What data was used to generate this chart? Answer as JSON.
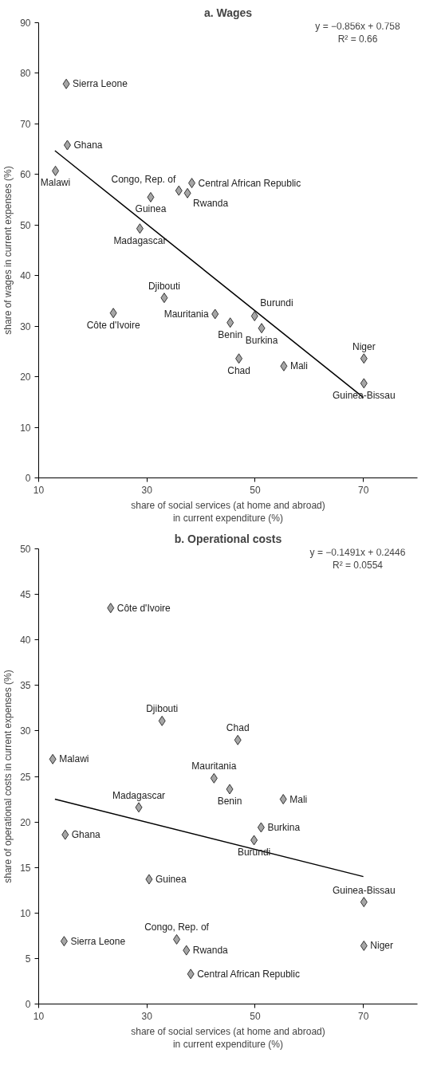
{
  "chart_data": [
    {
      "type": "scatter",
      "title": "a. Wages",
      "xlabel": "share of social services (at home and abroad)\nin current expenditure (%)",
      "ylabel": "share of wages in current expenses (%)",
      "xlim": [
        10,
        80
      ],
      "ylim": [
        0,
        90
      ],
      "xticks": [
        10,
        30,
        50,
        70
      ],
      "yticks": [
        0,
        10,
        20,
        30,
        40,
        50,
        60,
        70,
        80,
        90
      ],
      "grid": false,
      "series": [
        {
          "marker": "diamond",
          "color": "#a6a6a6",
          "x": [
            15.1,
            15.3,
            13.1,
            28.7,
            30.7,
            35.9,
            37.5,
            38.3,
            33.2,
            23.8,
            42.6,
            45.4,
            47.0,
            49.9,
            51.2,
            55.3,
            70.1,
            70.1
          ],
          "values": [
            77.9,
            65.8,
            60.7,
            49.3,
            55.5,
            56.8,
            56.3,
            58.3,
            35.6,
            32.6,
            32.4,
            30.7,
            23.6,
            32.0,
            29.6,
            22.1,
            23.6,
            18.7
          ]
        },
        {
          "type": "line",
          "color": "#000000",
          "x": [
            13,
            70
          ],
          "values": [
            64.7,
            15.9
          ]
        }
      ],
      "annotations": [
        "y = −0.856x + 0.758",
        "R² = 0.66",
        {
          "text": "Sierra Leone",
          "x": 15.1,
          "y": 77.9
        },
        {
          "text": "Ghana",
          "x": 15.3,
          "y": 65.8
        },
        {
          "text": "Malawi",
          "x": 13.1,
          "y": 60.7
        },
        {
          "text": "Madagascar",
          "x": 28.7,
          "y": 49.3
        },
        {
          "text": "Guinea",
          "x": 30.7,
          "y": 55.5
        },
        {
          "text": "Congo, Rep. of",
          "x": 35.9,
          "y": 56.8
        },
        {
          "text": "Rwanda",
          "x": 37.5,
          "y": 56.3
        },
        {
          "text": "Central African Republic",
          "x": 38.3,
          "y": 58.3
        },
        {
          "text": "Djibouti",
          "x": 33.2,
          "y": 35.6
        },
        {
          "text": "Côte d'Ivoire",
          "x": 23.8,
          "y": 32.6
        },
        {
          "text": "Mauritania",
          "x": 42.6,
          "y": 32.4
        },
        {
          "text": "Benin",
          "x": 45.4,
          "y": 30.7
        },
        {
          "text": "Chad",
          "x": 47.0,
          "y": 23.6
        },
        {
          "text": "Burundi",
          "x": 49.9,
          "y": 32.0
        },
        {
          "text": "Burkina",
          "x": 51.2,
          "y": 29.6
        },
        {
          "text": "Mali",
          "x": 55.3,
          "y": 22.1
        },
        {
          "text": "Niger",
          "x": 70.1,
          "y": 23.6
        },
        {
          "text": "Guinea-Bissau",
          "x": 70.1,
          "y": 18.7
        }
      ]
    },
    {
      "type": "scatter",
      "title": "b. Operational costs",
      "xlabel": "share of social services (at home and abroad)\nin current expenditure (%)",
      "ylabel": "share of operational costs in current expenses (%)",
      "xlim": [
        10,
        80
      ],
      "ylim": [
        0,
        50
      ],
      "xticks": [
        10,
        30,
        50,
        70
      ],
      "yticks": [
        0,
        5,
        10,
        15,
        20,
        25,
        30,
        35,
        40,
        45,
        50
      ],
      "grid": false,
      "series": [
        {
          "marker": "diamond",
          "color": "#a6a6a6",
          "x": [
            14.7,
            14.9,
            12.6,
            28.5,
            30.4,
            35.5,
            37.3,
            38.1,
            32.8,
            23.3,
            42.4,
            45.3,
            46.8,
            49.8,
            51.1,
            55.2,
            70.1,
            70.1
          ],
          "values": [
            6.9,
            18.6,
            26.9,
            21.6,
            13.7,
            7.1,
            5.9,
            3.3,
            31.1,
            43.5,
            24.8,
            23.6,
            29.0,
            18.0,
            19.4,
            22.5,
            6.4,
            11.2
          ]
        },
        {
          "type": "line",
          "color": "#000000",
          "x": [
            13,
            70
          ],
          "values": [
            22.5,
            14.0
          ]
        }
      ],
      "annotations": [
        "y = −0.1491x + 0.2446",
        "R² = 0.0554",
        {
          "text": "Sierra Leone",
          "x": 14.7,
          "y": 6.9
        },
        {
          "text": "Ghana",
          "x": 14.9,
          "y": 18.6
        },
        {
          "text": "Malawi",
          "x": 12.6,
          "y": 26.9
        },
        {
          "text": "Madagascar",
          "x": 28.5,
          "y": 21.6
        },
        {
          "text": "Guinea",
          "x": 30.4,
          "y": 13.7
        },
        {
          "text": "Congo, Rep. of",
          "x": 35.5,
          "y": 7.1
        },
        {
          "text": "Rwanda",
          "x": 37.3,
          "y": 5.9
        },
        {
          "text": "Central African Republic",
          "x": 38.1,
          "y": 3.3
        },
        {
          "text": "Djibouti",
          "x": 32.8,
          "y": 31.1
        },
        {
          "text": "Côte d'Ivoire",
          "x": 23.3,
          "y": 43.5
        },
        {
          "text": "Mauritania",
          "x": 42.4,
          "y": 24.8
        },
        {
          "text": "Benin",
          "x": 45.3,
          "y": 23.6
        },
        {
          "text": "Chad",
          "x": 46.8,
          "y": 29.0
        },
        {
          "text": "Burundi",
          "x": 49.8,
          "y": 18.0
        },
        {
          "text": "Burkina",
          "x": 51.1,
          "y": 19.4
        },
        {
          "text": "Mali",
          "x": 55.2,
          "y": 22.5
        },
        {
          "text": "Niger",
          "x": 70.1,
          "y": 6.4
        },
        {
          "text": "Guinea-Bissau",
          "x": 70.1,
          "y": 11.2
        }
      ]
    }
  ]
}
